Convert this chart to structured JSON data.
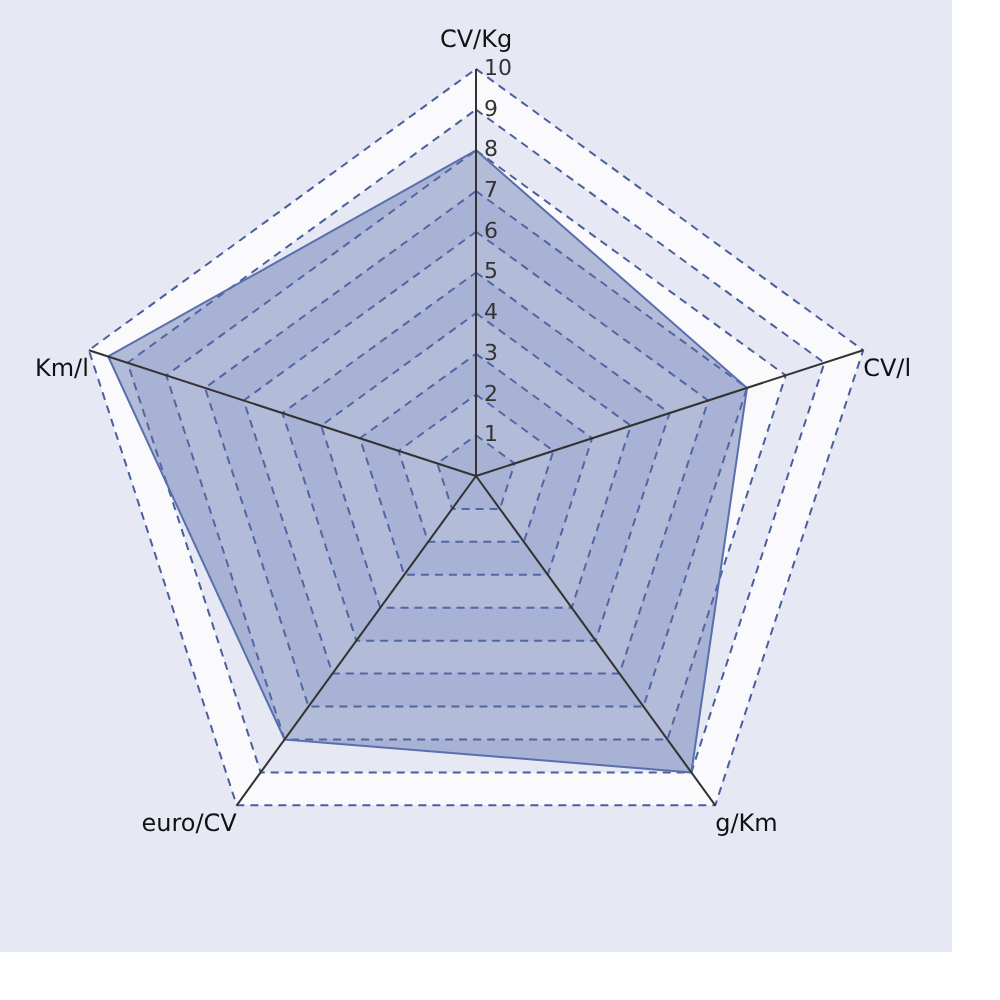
{
  "chart_data": {
    "type": "radar",
    "categories": [
      "CV/Kg",
      "CV/l",
      "g/Km",
      "euro/CV",
      "Km/l"
    ],
    "series": [
      {
        "color": "#5a6fae",
        "values": [
          8,
          7,
          9,
          8,
          9.5
        ]
      }
    ],
    "ylim": [
      0,
      10
    ],
    "yticks": [
      1,
      2,
      3,
      4,
      5,
      6,
      7,
      8,
      9,
      10
    ],
    "grid": true
  }
}
